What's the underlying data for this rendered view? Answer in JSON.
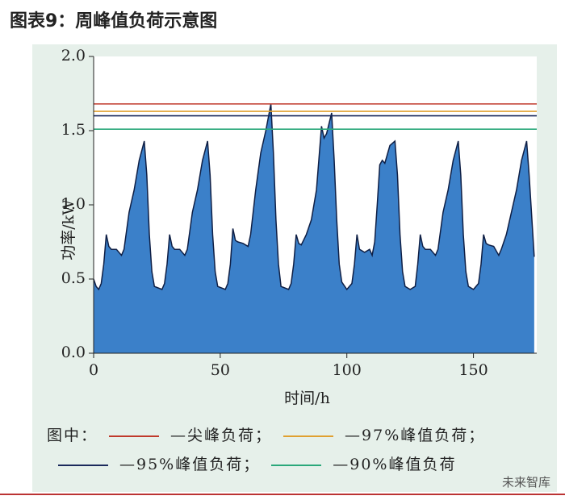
{
  "chart_data": {
    "type": "area",
    "title": "图表9：周峰值负荷示意图",
    "xlabel": "时间/h",
    "ylabel": "功率/kW",
    "x": [
      0,
      1,
      2,
      3,
      4,
      5,
      6,
      7,
      9,
      11,
      12,
      14,
      16,
      18,
      20,
      21,
      22,
      23,
      24,
      27,
      28,
      29,
      30,
      31,
      32,
      34,
      36,
      37,
      39,
      41,
      43,
      45,
      46,
      47,
      48,
      49,
      52,
      53,
      54,
      55,
      56,
      57,
      59,
      61,
      62,
      64,
      66,
      68,
      70,
      71,
      72,
      73,
      74,
      77,
      78,
      79,
      80,
      81,
      82,
      84,
      86,
      88,
      90,
      91,
      92,
      93,
      94,
      95,
      96,
      97,
      98,
      100,
      102,
      103,
      104,
      105,
      107,
      109,
      110,
      111,
      112,
      113,
      114,
      115,
      117,
      119,
      120,
      121,
      122,
      123,
      125,
      127,
      128,
      129,
      130,
      131,
      133,
      135,
      136,
      138,
      140,
      142,
      144,
      145,
      146,
      147,
      148,
      150,
      152,
      153,
      154,
      155,
      156,
      158,
      160,
      161,
      163,
      165,
      167,
      169,
      171,
      172,
      174
    ],
    "values": [
      0.5,
      0.45,
      0.43,
      0.47,
      0.6,
      0.8,
      0.72,
      0.7,
      0.7,
      0.66,
      0.7,
      0.95,
      1.1,
      1.3,
      1.43,
      1.2,
      0.8,
      0.55,
      0.45,
      0.43,
      0.47,
      0.6,
      0.8,
      0.72,
      0.7,
      0.7,
      0.66,
      0.7,
      0.95,
      1.1,
      1.3,
      1.43,
      1.2,
      0.8,
      0.55,
      0.45,
      0.43,
      0.47,
      0.6,
      0.84,
      0.76,
      0.75,
      0.74,
      0.72,
      0.8,
      1.1,
      1.35,
      1.5,
      1.68,
      1.35,
      0.9,
      0.6,
      0.45,
      0.43,
      0.47,
      0.6,
      0.8,
      0.74,
      0.73,
      0.8,
      0.9,
      1.1,
      1.53,
      1.45,
      1.48,
      1.55,
      1.62,
      1.3,
      0.9,
      0.6,
      0.48,
      0.43,
      0.47,
      0.6,
      0.8,
      0.7,
      0.68,
      0.7,
      0.66,
      0.75,
      1.0,
      1.27,
      1.3,
      1.28,
      1.4,
      1.43,
      1.2,
      0.8,
      0.55,
      0.45,
      0.43,
      0.45,
      0.6,
      0.8,
      0.72,
      0.7,
      0.7,
      0.66,
      0.7,
      0.95,
      1.1,
      1.3,
      1.43,
      1.2,
      0.8,
      0.55,
      0.45,
      0.43,
      0.47,
      0.6,
      0.8,
      0.74,
      0.73,
      0.72,
      0.66,
      0.7,
      0.8,
      0.95,
      1.1,
      1.3,
      1.43,
      1.2,
      0.65
    ],
    "color": "#3b80c9",
    "xlim": [
      0,
      175
    ],
    "ylim": [
      0,
      2
    ],
    "xticks": [
      0,
      50,
      100,
      150
    ],
    "yticks": [
      {
        "value": 0,
        "label": "0.0"
      },
      {
        "value": 0.5,
        "label": "0.5"
      },
      {
        "value": 1,
        "label": "1.0"
      },
      {
        "value": 1.5,
        "label": "1.5"
      },
      {
        "value": 2,
        "label": "2.0"
      }
    ],
    "legend_prefix": "图中：",
    "reference_lines": [
      {
        "name": "—尖峰负荷；",
        "value": 1.68,
        "color": "#c0392b"
      },
      {
        "name": "—97%峰值负荷；",
        "value": 1.63,
        "color": "#e0a030"
      },
      {
        "name": "—95%峰值负荷；",
        "value": 1.6,
        "color": "#1b2a5c"
      },
      {
        "name": "—90%峰值负荷",
        "value": 1.51,
        "color": "#2aa87a"
      }
    ],
    "watermark": "未来智库"
  }
}
